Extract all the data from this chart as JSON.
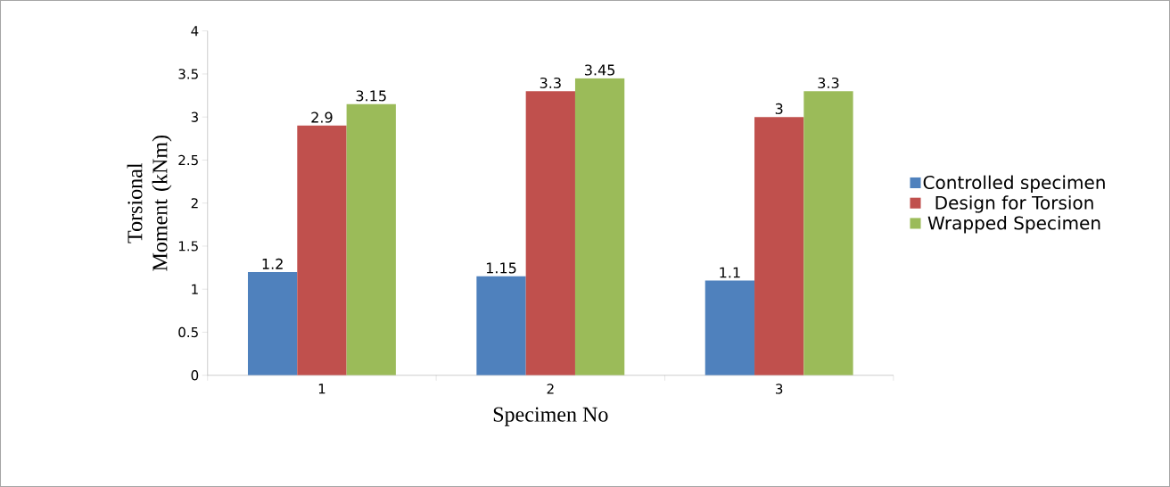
{
  "chart_data": {
    "type": "bar",
    "xlabel": "Specimen No",
    "ylabel": "Torsional Moment (kNm)",
    "categories": [
      "1",
      "2",
      "3"
    ],
    "series": [
      {
        "name": "Controlled specimen",
        "color": "#4f81bd",
        "values": [
          1.2,
          1.15,
          1.1
        ]
      },
      {
        "name": "Design for Torsion",
        "color": "#c0504d",
        "values": [
          2.9,
          3.3,
          3
        ]
      },
      {
        "name": "Wrapped Specimen",
        "color": "#9bbb59",
        "values": [
          3.15,
          3.45,
          3.3
        ]
      }
    ],
    "ylim": [
      0,
      4
    ],
    "yticks": [
      0,
      0.5,
      1,
      1.5,
      2,
      2.5,
      3,
      3.5,
      4
    ],
    "data_labels": true,
    "grid": false,
    "legend": "right"
  }
}
